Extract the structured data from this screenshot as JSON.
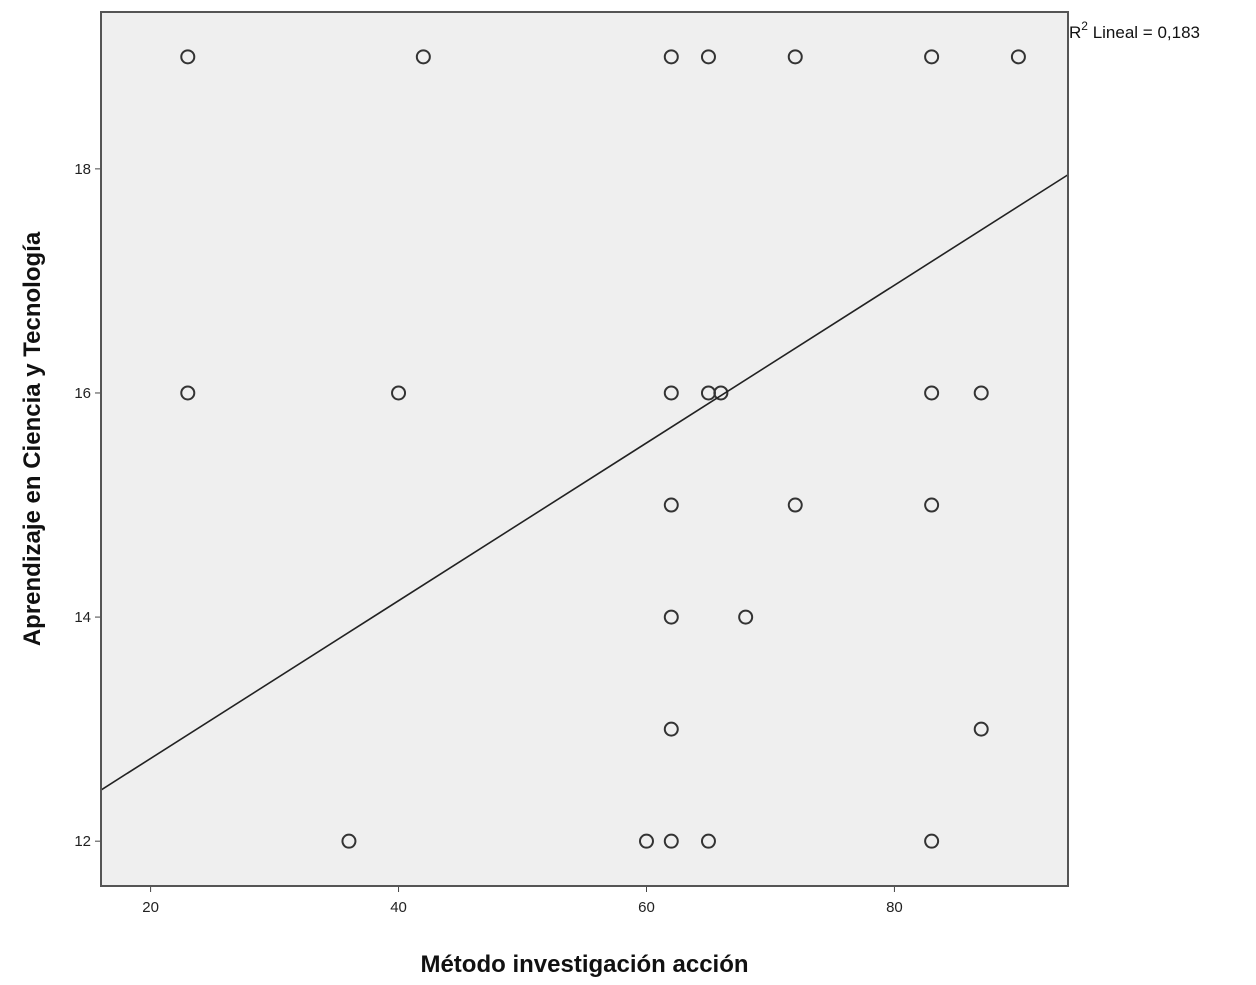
{
  "chart_data": {
    "type": "scatter",
    "title": "",
    "xlabel": "Método investigación acción",
    "ylabel": "Aprendizaje en Ciencia y Tecnología",
    "xlim": [
      16,
      94
    ],
    "ylim": [
      11.6,
      19.4
    ],
    "xticks": [
      20,
      40,
      60,
      80
    ],
    "yticks": [
      12,
      14,
      16,
      18
    ],
    "grid": false,
    "plot_background": "#efefef",
    "marker_color": "#333333",
    "line_color": "#222222",
    "points": [
      {
        "x": 23,
        "y": 19
      },
      {
        "x": 42,
        "y": 19
      },
      {
        "x": 62,
        "y": 19
      },
      {
        "x": 65,
        "y": 19
      },
      {
        "x": 72,
        "y": 19
      },
      {
        "x": 83,
        "y": 19
      },
      {
        "x": 90,
        "y": 19
      },
      {
        "x": 23,
        "y": 16
      },
      {
        "x": 40,
        "y": 16
      },
      {
        "x": 62,
        "y": 16
      },
      {
        "x": 65,
        "y": 16
      },
      {
        "x": 66,
        "y": 16
      },
      {
        "x": 83,
        "y": 16
      },
      {
        "x": 87,
        "y": 16
      },
      {
        "x": 62,
        "y": 15
      },
      {
        "x": 72,
        "y": 15
      },
      {
        "x": 83,
        "y": 15
      },
      {
        "x": 62,
        "y": 14
      },
      {
        "x": 68,
        "y": 14
      },
      {
        "x": 62,
        "y": 13
      },
      {
        "x": 87,
        "y": 13
      },
      {
        "x": 36,
        "y": 12
      },
      {
        "x": 60,
        "y": 12
      },
      {
        "x": 62,
        "y": 12
      },
      {
        "x": 65,
        "y": 12
      },
      {
        "x": 83,
        "y": 12
      }
    ],
    "fit_line": {
      "type": "linear",
      "intercept": 11.33,
      "slope": 0.0704
    },
    "annotation": {
      "prefix": "R",
      "superscript": "2",
      "text": " Lineal = 0,183"
    }
  }
}
